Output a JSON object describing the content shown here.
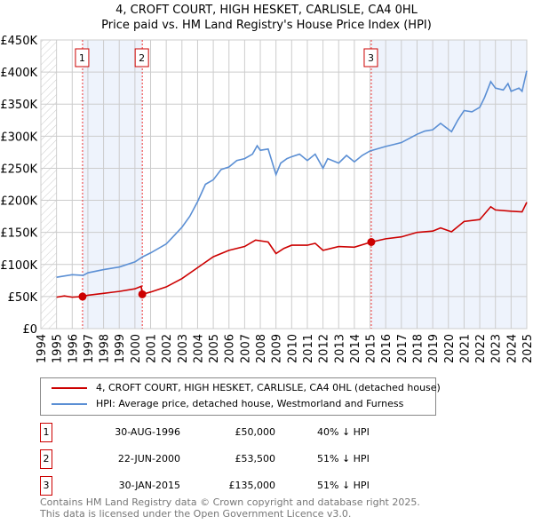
{
  "chart_data": {
    "type": "line",
    "title": "4, CROFT COURT, HIGH HESKET, CARLISLE, CA4 0HL",
    "subtitle": "Price paid vs. HM Land Registry's House Price Index (HPI)",
    "xlim": [
      1994,
      2025
    ],
    "ylim": [
      0,
      450000
    ],
    "yticks": [
      0,
      50000,
      100000,
      150000,
      200000,
      250000,
      300000,
      350000,
      400000,
      450000
    ],
    "ytick_labels": [
      "£0",
      "£50K",
      "£100K",
      "£150K",
      "£200K",
      "£250K",
      "£300K",
      "£350K",
      "£400K",
      "£450K"
    ],
    "xticks": [
      1994,
      1995,
      1996,
      1997,
      1998,
      1999,
      2000,
      2001,
      2002,
      2003,
      2004,
      2005,
      2006,
      2007,
      2008,
      2009,
      2010,
      2011,
      2012,
      2013,
      2014,
      2015,
      2016,
      2017,
      2018,
      2019,
      2020,
      2021,
      2022,
      2023,
      2024,
      2025
    ],
    "grid": true,
    "series": [
      {
        "name": "4, CROFT COURT, HIGH HESKET, CARLISLE, CA4 0HL (detached house)",
        "color": "#cc0000",
        "x": [
          1995,
          1995.5,
          1996,
          1996.66,
          1997,
          1998,
          1999,
          2000,
          2000.4,
          2000.47,
          2001,
          2002,
          2003,
          2004,
          2005,
          2006,
          2007,
          2007.7,
          2008.5,
          2009,
          2009.5,
          2010,
          2011,
          2011.5,
          2012,
          2013,
          2014,
          2015.08,
          2016,
          2017,
          2018,
          2019,
          2019.5,
          2020.2,
          2021,
          2022,
          2022.7,
          2023,
          2024,
          2024.7,
          2025
        ],
        "y": [
          49000,
          51000,
          49000,
          50000,
          52000,
          55000,
          58000,
          62000,
          66000,
          53500,
          57000,
          65000,
          78000,
          95000,
          112000,
          122000,
          128000,
          138000,
          135000,
          117000,
          125000,
          130000,
          130000,
          133000,
          122000,
          128000,
          127000,
          135000,
          140000,
          143000,
          150000,
          152000,
          157000,
          151000,
          167000,
          170000,
          190000,
          185000,
          183000,
          182000,
          197000
        ]
      },
      {
        "name": "HPI: Average price, detached house, Westmorland and Furness",
        "color": "#5b8fd4",
        "x": [
          1995,
          1996,
          1996.7,
          1997,
          1998,
          1999,
          2000,
          2000.5,
          2001,
          2002,
          2002.5,
          2003,
          2003.5,
          2004,
          2004.5,
          2005,
          2005.5,
          2006,
          2006.5,
          2007,
          2007.5,
          2007.8,
          2008,
          2008.5,
          2009,
          2009.3,
          2009.7,
          2010,
          2010.5,
          2011,
          2011.5,
          2012,
          2012.3,
          2013,
          2013.5,
          2014,
          2014.5,
          2015,
          2016,
          2016.5,
          2017,
          2018,
          2018.5,
          2019,
          2019.5,
          2020.2,
          2020.6,
          2021,
          2021.5,
          2022,
          2022.3,
          2022.7,
          2023,
          2023.5,
          2023.8,
          2024,
          2024.5,
          2024.7,
          2025
        ],
        "y": [
          80000,
          84000,
          83000,
          87000,
          92000,
          96000,
          104000,
          112000,
          118000,
          132000,
          145000,
          158000,
          175000,
          198000,
          225000,
          232000,
          248000,
          252000,
          262000,
          265000,
          272000,
          285000,
          278000,
          280000,
          240000,
          258000,
          265000,
          268000,
          272000,
          262000,
          272000,
          250000,
          265000,
          258000,
          270000,
          260000,
          270000,
          277000,
          284000,
          287000,
          290000,
          303000,
          308000,
          310000,
          320000,
          307000,
          325000,
          340000,
          338000,
          345000,
          360000,
          385000,
          375000,
          372000,
          382000,
          370000,
          375000,
          370000,
          402000
        ]
      }
    ],
    "sales": [
      {
        "n": "1",
        "x": 1996.66,
        "y": 50000,
        "date": "30-AUG-1996",
        "price": "£50,000",
        "hpi": "40% ↓ HPI"
      },
      {
        "n": "2",
        "x": 2000.47,
        "y": 53500,
        "date": "22-JUN-2000",
        "price": "£53,500",
        "hpi": "51% ↓ HPI"
      },
      {
        "n": "3",
        "x": 2015.08,
        "y": 135000,
        "date": "30-JAN-2015",
        "price": "£135,000",
        "hpi": "51% ↓ HPI"
      }
    ]
  },
  "footer": [
    "Contains HM Land Registry data © Crown copyright and database right 2025.",
    "This data is licensed under the Open Government Licence v3.0."
  ]
}
